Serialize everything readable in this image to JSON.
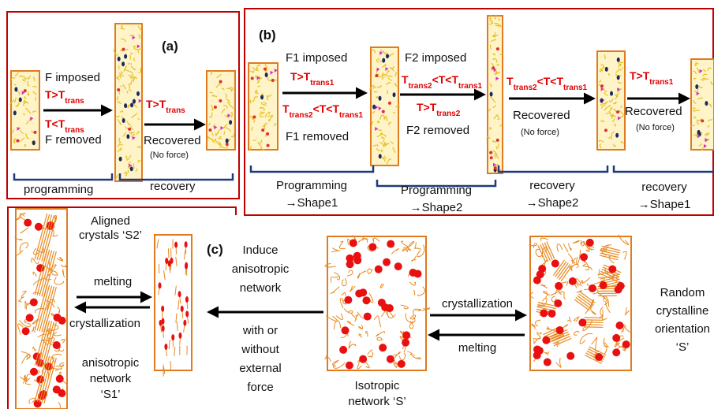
{
  "panel_a": {
    "label": "(a)",
    "imposed": "F imposed",
    "cond_heat": [
      "T>T",
      "trans"
    ],
    "cond_cool": [
      "T<T",
      "trans"
    ],
    "removed": "F removed",
    "cond_recover": [
      "T>T",
      "trans"
    ],
    "recovered": "Recovered",
    "no_force": "(No force)",
    "programming": "programming",
    "recovery": "recovery"
  },
  "panel_b": {
    "label": "(b)",
    "step1": {
      "imposed": "F1 imposed",
      "cond_heat": [
        "T>T",
        "trans1"
      ],
      "cond_cool": [
        "T",
        "trans2",
        "<T<T",
        "trans1"
      ],
      "removed": "F1 removed"
    },
    "step2": {
      "imposed": "F2 imposed",
      "cond_heat": [
        "T",
        "trans2",
        "<T<T",
        "trans1"
      ],
      "cond_cool": [
        "T>T",
        "trans2"
      ],
      "removed": "F2 removed"
    },
    "step3": {
      "cond": [
        "T",
        "trans2",
        "<T<T",
        "trans1"
      ],
      "recovered": "Recovered",
      "no_force": "(No force)"
    },
    "step4": {
      "cond": [
        "T>T",
        "trans1"
      ],
      "recovered": "Recovered",
      "no_force": "(No force)"
    },
    "stages": [
      [
        "Programming",
        "→Shape1"
      ],
      [
        "Programming",
        "→Shape2"
      ],
      [
        "recovery",
        "→Shape2"
      ],
      [
        "recovery",
        "→Shape1"
      ]
    ]
  },
  "panel_c": {
    "label": "(c)",
    "aligned": [
      "Aligned",
      "crystals ‘S2’"
    ],
    "melting_left": "melting",
    "crystallization_left": "crystallization",
    "anisotropic": [
      "anisotropic",
      "network",
      "‘S1’"
    ],
    "induce": [
      "Induce",
      "anisotropic",
      "network"
    ],
    "force": [
      "with or",
      "without",
      "external",
      "force"
    ],
    "isotropic": [
      "Isotropic",
      "network ‘S’"
    ],
    "crystallization_right": "crystallization",
    "melting_right": "melting",
    "random": [
      "Random",
      "crystalline",
      "orientation",
      "‘S’"
    ]
  }
}
